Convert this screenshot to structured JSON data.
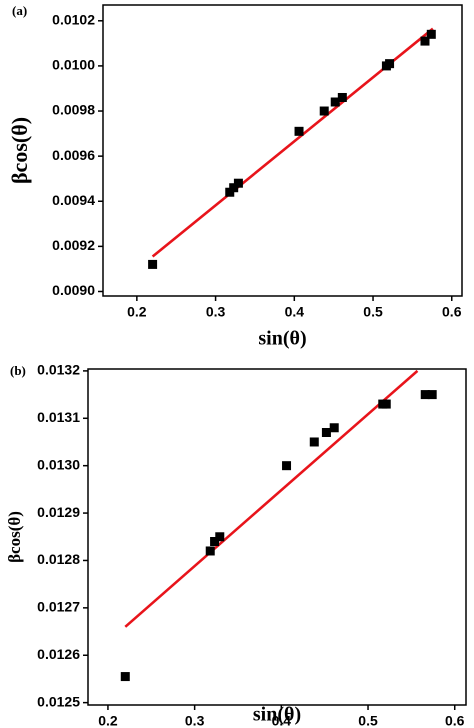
{
  "chart_data": [
    {
      "type": "scatter",
      "panel_label": "(a)",
      "x_label": "sin(θ)",
      "y_label": "βcos(θ)",
      "xlim": [
        0.157,
        0.613
      ],
      "ylim": [
        0.00898,
        0.01027
      ],
      "xticks": [
        0.2,
        0.3,
        0.4,
        0.5,
        0.6
      ],
      "yticks": [
        {
          "value": 0.009,
          "label": "0.0090"
        },
        0.0092,
        0.0094,
        0.0096,
        0.0098,
        {
          "value": 0.01,
          "label": "0.0100"
        },
        0.0102
      ],
      "points": {
        "color": "#000000",
        "x": [
          0.22,
          0.318,
          0.323,
          0.329,
          0.406,
          0.438,
          0.452,
          0.461,
          0.517,
          0.521,
          0.566,
          0.574
        ],
        "values": [
          0.00912,
          0.00944,
          0.00946,
          0.00948,
          0.00971,
          0.0098,
          0.00984,
          0.00986,
          0.01,
          0.01001,
          0.01011,
          0.01014
        ]
      },
      "fit": {
        "color": "#e8141b",
        "x": [
          0.22,
          0.576
        ],
        "values": [
          0.009155,
          0.010165
        ]
      }
    },
    {
      "type": "scatter",
      "panel_label": "(b)",
      "x_label": "sin(θ)",
      "y_label": "βcos(θ)",
      "xlim": [
        0.177,
        0.613
      ],
      "ylim": [
        0.012495,
        0.013204
      ],
      "xticks": [
        0.2,
        0.3,
        0.4,
        0.5,
        0.6
      ],
      "yticks": [
        0.0125,
        0.0126,
        0.0127,
        0.0128,
        0.0129,
        {
          "value": 0.013,
          "label": "0.0130"
        },
        0.0131,
        0.0132
      ],
      "points": {
        "color": "#000000",
        "x": [
          0.22,
          0.318,
          0.323,
          0.329,
          0.406,
          0.438,
          0.452,
          0.461,
          0.517,
          0.521,
          0.566,
          0.574
        ],
        "values": [
          0.012555,
          0.01282,
          0.01284,
          0.01285,
          0.013,
          0.01305,
          0.01307,
          0.01308,
          0.01313,
          0.01313,
          0.01315,
          0.01315
        ]
      },
      "fit": {
        "color": "#e8141b",
        "x": [
          0.22,
          0.557
        ],
        "values": [
          0.01266,
          0.0132
        ]
      }
    }
  ]
}
